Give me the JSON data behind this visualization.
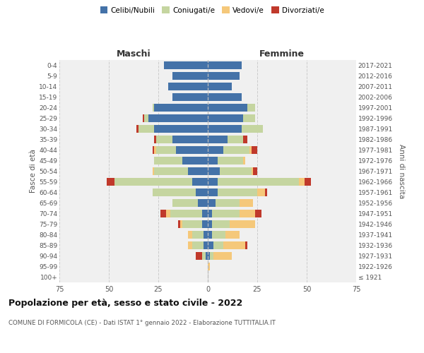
{
  "age_groups": [
    "100+",
    "95-99",
    "90-94",
    "85-89",
    "80-84",
    "75-79",
    "70-74",
    "65-69",
    "60-64",
    "55-59",
    "50-54",
    "45-49",
    "40-44",
    "35-39",
    "30-34",
    "25-29",
    "20-24",
    "15-19",
    "10-14",
    "5-9",
    "0-4"
  ],
  "birth_years": [
    "≤ 1921",
    "1922-1926",
    "1927-1931",
    "1932-1936",
    "1937-1941",
    "1942-1946",
    "1947-1951",
    "1952-1956",
    "1957-1961",
    "1962-1966",
    "1967-1971",
    "1972-1976",
    "1977-1981",
    "1982-1986",
    "1987-1991",
    "1992-1996",
    "1997-2001",
    "2002-2006",
    "2007-2011",
    "2012-2016",
    "2017-2021"
  ],
  "maschi": {
    "celibi": [
      0,
      0,
      1,
      2,
      2,
      3,
      3,
      5,
      6,
      8,
      10,
      13,
      16,
      18,
      27,
      30,
      27,
      18,
      20,
      18,
      22
    ],
    "coniugati": [
      0,
      0,
      2,
      6,
      6,
      10,
      16,
      13,
      22,
      39,
      17,
      14,
      10,
      8,
      8,
      2,
      1,
      0,
      0,
      0,
      0
    ],
    "vedovi": [
      0,
      0,
      0,
      2,
      2,
      1,
      2,
      0,
      0,
      0,
      1,
      0,
      1,
      0,
      0,
      0,
      0,
      0,
      0,
      0,
      0
    ],
    "divorziati": [
      0,
      0,
      3,
      0,
      0,
      1,
      3,
      0,
      0,
      4,
      0,
      0,
      1,
      1,
      1,
      1,
      0,
      0,
      0,
      0,
      0
    ]
  },
  "femmine": {
    "nubili": [
      0,
      0,
      1,
      3,
      2,
      2,
      2,
      4,
      5,
      5,
      6,
      5,
      8,
      10,
      17,
      18,
      20,
      17,
      12,
      16,
      17
    ],
    "coniugate": [
      0,
      0,
      2,
      5,
      7,
      9,
      14,
      12,
      20,
      41,
      16,
      13,
      13,
      8,
      11,
      6,
      4,
      0,
      0,
      0,
      0
    ],
    "vedove": [
      0,
      1,
      9,
      11,
      7,
      13,
      8,
      7,
      4,
      3,
      1,
      1,
      1,
      0,
      0,
      0,
      0,
      0,
      0,
      0,
      0
    ],
    "divorziate": [
      0,
      0,
      0,
      1,
      0,
      0,
      3,
      0,
      1,
      3,
      2,
      0,
      3,
      2,
      0,
      0,
      0,
      0,
      0,
      0,
      0
    ]
  },
  "colors": {
    "celibi": "#4472a8",
    "coniugati": "#c5d5a0",
    "vedovi": "#f5c87a",
    "divorziati": "#c0392b"
  },
  "title": "Popolazione per età, sesso e stato civile - 2022",
  "subtitle": "COMUNE DI FORMICOLA (CE) - Dati ISTAT 1° gennaio 2022 - Elaborazione TUTTITALIA.IT",
  "xlabel_left": "Maschi",
  "xlabel_right": "Femmine",
  "ylabel_left": "Fasce di età",
  "ylabel_right": "Anni di nascita",
  "xlim": 75,
  "bg_color": "#ffffff",
  "plot_bg_color": "#f0f0f0",
  "grid_color": "#cccccc",
  "legend_labels": [
    "Celibi/Nubili",
    "Coniugati/e",
    "Vedovi/e",
    "Divorziati/e"
  ]
}
